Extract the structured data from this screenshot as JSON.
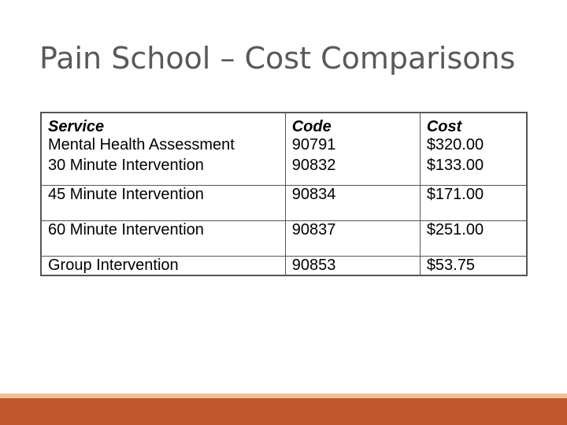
{
  "slide": {
    "title": "Pain School – Cost Comparisons"
  },
  "table": {
    "headers": [
      "Service",
      "Code",
      "Cost"
    ],
    "rows": [
      [
        "Mental Health Assessment",
        "90791",
        "$320.00"
      ],
      [
        "30 Minute Intervention",
        "90832",
        "$133.00"
      ],
      [
        "45 Minute Intervention",
        "90834",
        "$171.00"
      ],
      [
        "60 Minute Intervention",
        "90837",
        "$251.00"
      ],
      [
        "Group Intervention",
        "90853",
        "$53.75"
      ]
    ]
  },
  "colors": {
    "accent": "#c0582b",
    "accent_light": "#f2c29a",
    "title_text": "#595959"
  }
}
